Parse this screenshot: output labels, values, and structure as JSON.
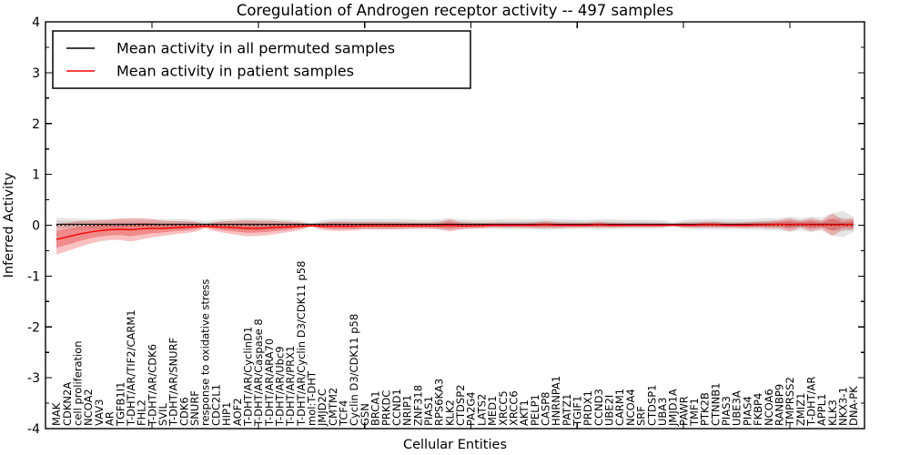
{
  "figure": {
    "title": "Coregulation of Androgen receptor activity -- 497 samples",
    "xlabel": "Cellular Entities",
    "ylabel": "Inferred Activity"
  },
  "chart_data": {
    "type": "line",
    "title": "Coregulation of Androgen receptor activity -- 497 samples",
    "xlabel": "Cellular Entities",
    "ylabel": "Inferred Activity",
    "ylim": [
      -4,
      4
    ],
    "yticks": [
      "4",
      "3",
      "2",
      "1",
      "0",
      "-1",
      "-2",
      "-3",
      "-4"
    ],
    "grid": false,
    "legend_position": "upper left",
    "band_colors": {
      "permuted": "#bdbdbd",
      "patient": "#f08080"
    },
    "categories": [
      "MAK",
      "CDKN2A",
      "cell proliferation",
      "NCOA2",
      "VAV3",
      "AR",
      "TGFB1I1",
      "T-DHT/AR/TIF2/CARM1",
      "FHL2",
      "T-DHT/AR/CDK6",
      "SVIL",
      "T-DHT/AR/SNURF",
      "CDK6",
      "SNURF",
      "response to oxidative stress",
      "CDC2L1",
      "HIP1",
      "AOF2",
      "T-DHT/AR/CyclinD1",
      "T-DHT/AR/Caspase 8",
      "T-DHT/AR/ARA70",
      "T-DHT/AR/Ubc9",
      "T-DHT/AR/PRX1",
      "T-DHT/AR/Cyclin D3/CDK11 p58",
      "mol:T-DHT",
      "JMJD2C",
      "CMTM2",
      "TCF4",
      "Cyclin D3/CDK11 p58",
      "GSN",
      "BRCA1",
      "PRKDC",
      "CCND1",
      "NRIP1",
      "ZNF318",
      "PIAS1",
      "RPS6KA3",
      "KLK2",
      "CTDSP2",
      "PA2G4",
      "LATS2",
      "MED1",
      "XRCC5",
      "XRCC6",
      "AKT1",
      "PELP1",
      "CASP8",
      "HNRNPA1",
      "PATZ1",
      "TGIF1",
      "PRDX1",
      "CCND3",
      "UBE2I",
      "CARM1",
      "NCOA4",
      "SRF",
      "CTDSP1",
      "UBA3",
      "JMJD1A",
      "PAWR",
      "TMF1",
      "PTK2B",
      "CTNNB1",
      "PIAS3",
      "UBE3A",
      "PIAS4",
      "FKBP4",
      "NCOA6",
      "RANBP9",
      "TMPRSS2",
      "ZMIZ1",
      "T-DHT/AR",
      "APPL1",
      "KLK3",
      "NKX3-1",
      "DNA-PK"
    ],
    "series": [
      {
        "name": "Mean activity in all permuted samples",
        "color": "#000000",
        "values": [
          0.02,
          0.02,
          0.02,
          0.02,
          0.02,
          0.02,
          0.02,
          0.02,
          0.02,
          0.02,
          0.02,
          0.02,
          0.02,
          0.02,
          0.02,
          0.02,
          0.02,
          0.02,
          0.02,
          0.02,
          0.02,
          0.02,
          0.02,
          0.02,
          0.02,
          0.02,
          0.02,
          0.02,
          0.02,
          0.02,
          0.02,
          0.02,
          0.02,
          0.02,
          0.02,
          0.02,
          0.02,
          0.02,
          0.02,
          0.02,
          0.02,
          0.02,
          0.02,
          0.02,
          0.02,
          0.02,
          0.02,
          0.02,
          0.02,
          0.02,
          0.02,
          0.02,
          0.02,
          0.02,
          0.02,
          0.02,
          0.02,
          0.02,
          0.02,
          0.02,
          0.02,
          0.02,
          0.02,
          0.02,
          0.02,
          0.02,
          0.02,
          0.02,
          0.02,
          0.02,
          0.02,
          0.02,
          0.02,
          0.02,
          0.02,
          0.02
        ],
        "band_halfwidth": [
          0.13,
          0.12,
          0.11,
          0.1,
          0.1,
          0.1,
          0.1,
          0.1,
          0.1,
          0.1,
          0.1,
          0.1,
          0.1,
          0.09,
          0.06,
          0.09,
          0.1,
          0.11,
          0.12,
          0.12,
          0.11,
          0.1,
          0.09,
          0.07,
          0.03,
          0.08,
          0.1,
          0.11,
          0.1,
          0.1,
          0.1,
          0.1,
          0.1,
          0.1,
          0.09,
          0.09,
          0.1,
          0.12,
          0.1,
          0.09,
          0.09,
          0.09,
          0.1,
          0.1,
          0.1,
          0.1,
          0.11,
          0.1,
          0.1,
          0.09,
          0.09,
          0.1,
          0.1,
          0.09,
          0.09,
          0.09,
          0.09,
          0.08,
          0.04,
          0.08,
          0.1,
          0.1,
          0.11,
          0.1,
          0.1,
          0.1,
          0.11,
          0.12,
          0.12,
          0.15,
          0.12,
          0.15,
          0.13,
          0.22,
          0.26,
          0.15
        ]
      },
      {
        "name": "Mean activity in patient samples",
        "color": "#ff0000",
        "values": [
          -0.28,
          -0.23,
          -0.18,
          -0.14,
          -0.11,
          -0.09,
          -0.08,
          -0.09,
          -0.07,
          -0.06,
          -0.06,
          -0.05,
          -0.04,
          -0.03,
          -0.02,
          -0.03,
          -0.04,
          -0.05,
          -0.06,
          -0.06,
          -0.05,
          -0.04,
          -0.03,
          -0.02,
          -0.01,
          -0.02,
          -0.02,
          -0.02,
          -0.02,
          -0.01,
          -0.01,
          -0.01,
          -0.01,
          -0.01,
          -0.01,
          -0.01,
          -0.01,
          0.0,
          -0.01,
          -0.01,
          -0.01,
          0.0,
          0.0,
          0.0,
          0.0,
          0.0,
          0.01,
          0.0,
          0.0,
          0.0,
          0.0,
          0.01,
          0.0,
          0.0,
          0.0,
          0.0,
          0.0,
          0.0,
          0.0,
          0.0,
          0.0,
          0.01,
          0.01,
          0.0,
          0.0,
          0.0,
          0.01,
          0.01,
          0.02,
          0.01,
          0.02,
          0.01,
          0.01,
          0.01,
          0.01,
          0.02
        ],
        "band_halfwidth": [
          0.3,
          0.28,
          0.26,
          0.23,
          0.21,
          0.2,
          0.21,
          0.23,
          0.21,
          0.18,
          0.15,
          0.13,
          0.12,
          0.1,
          0.04,
          0.09,
          0.12,
          0.14,
          0.16,
          0.15,
          0.14,
          0.12,
          0.1,
          0.07,
          0.02,
          0.07,
          0.09,
          0.09,
          0.08,
          0.07,
          0.07,
          0.07,
          0.07,
          0.06,
          0.06,
          0.06,
          0.07,
          0.12,
          0.07,
          0.06,
          0.05,
          0.05,
          0.05,
          0.05,
          0.05,
          0.06,
          0.07,
          0.06,
          0.05,
          0.05,
          0.05,
          0.06,
          0.05,
          0.05,
          0.04,
          0.04,
          0.04,
          0.04,
          0.02,
          0.05,
          0.05,
          0.06,
          0.06,
          0.05,
          0.05,
          0.06,
          0.06,
          0.07,
          0.08,
          0.13,
          0.07,
          0.13,
          0.08,
          0.22,
          0.1,
          0.12
        ]
      }
    ]
  }
}
